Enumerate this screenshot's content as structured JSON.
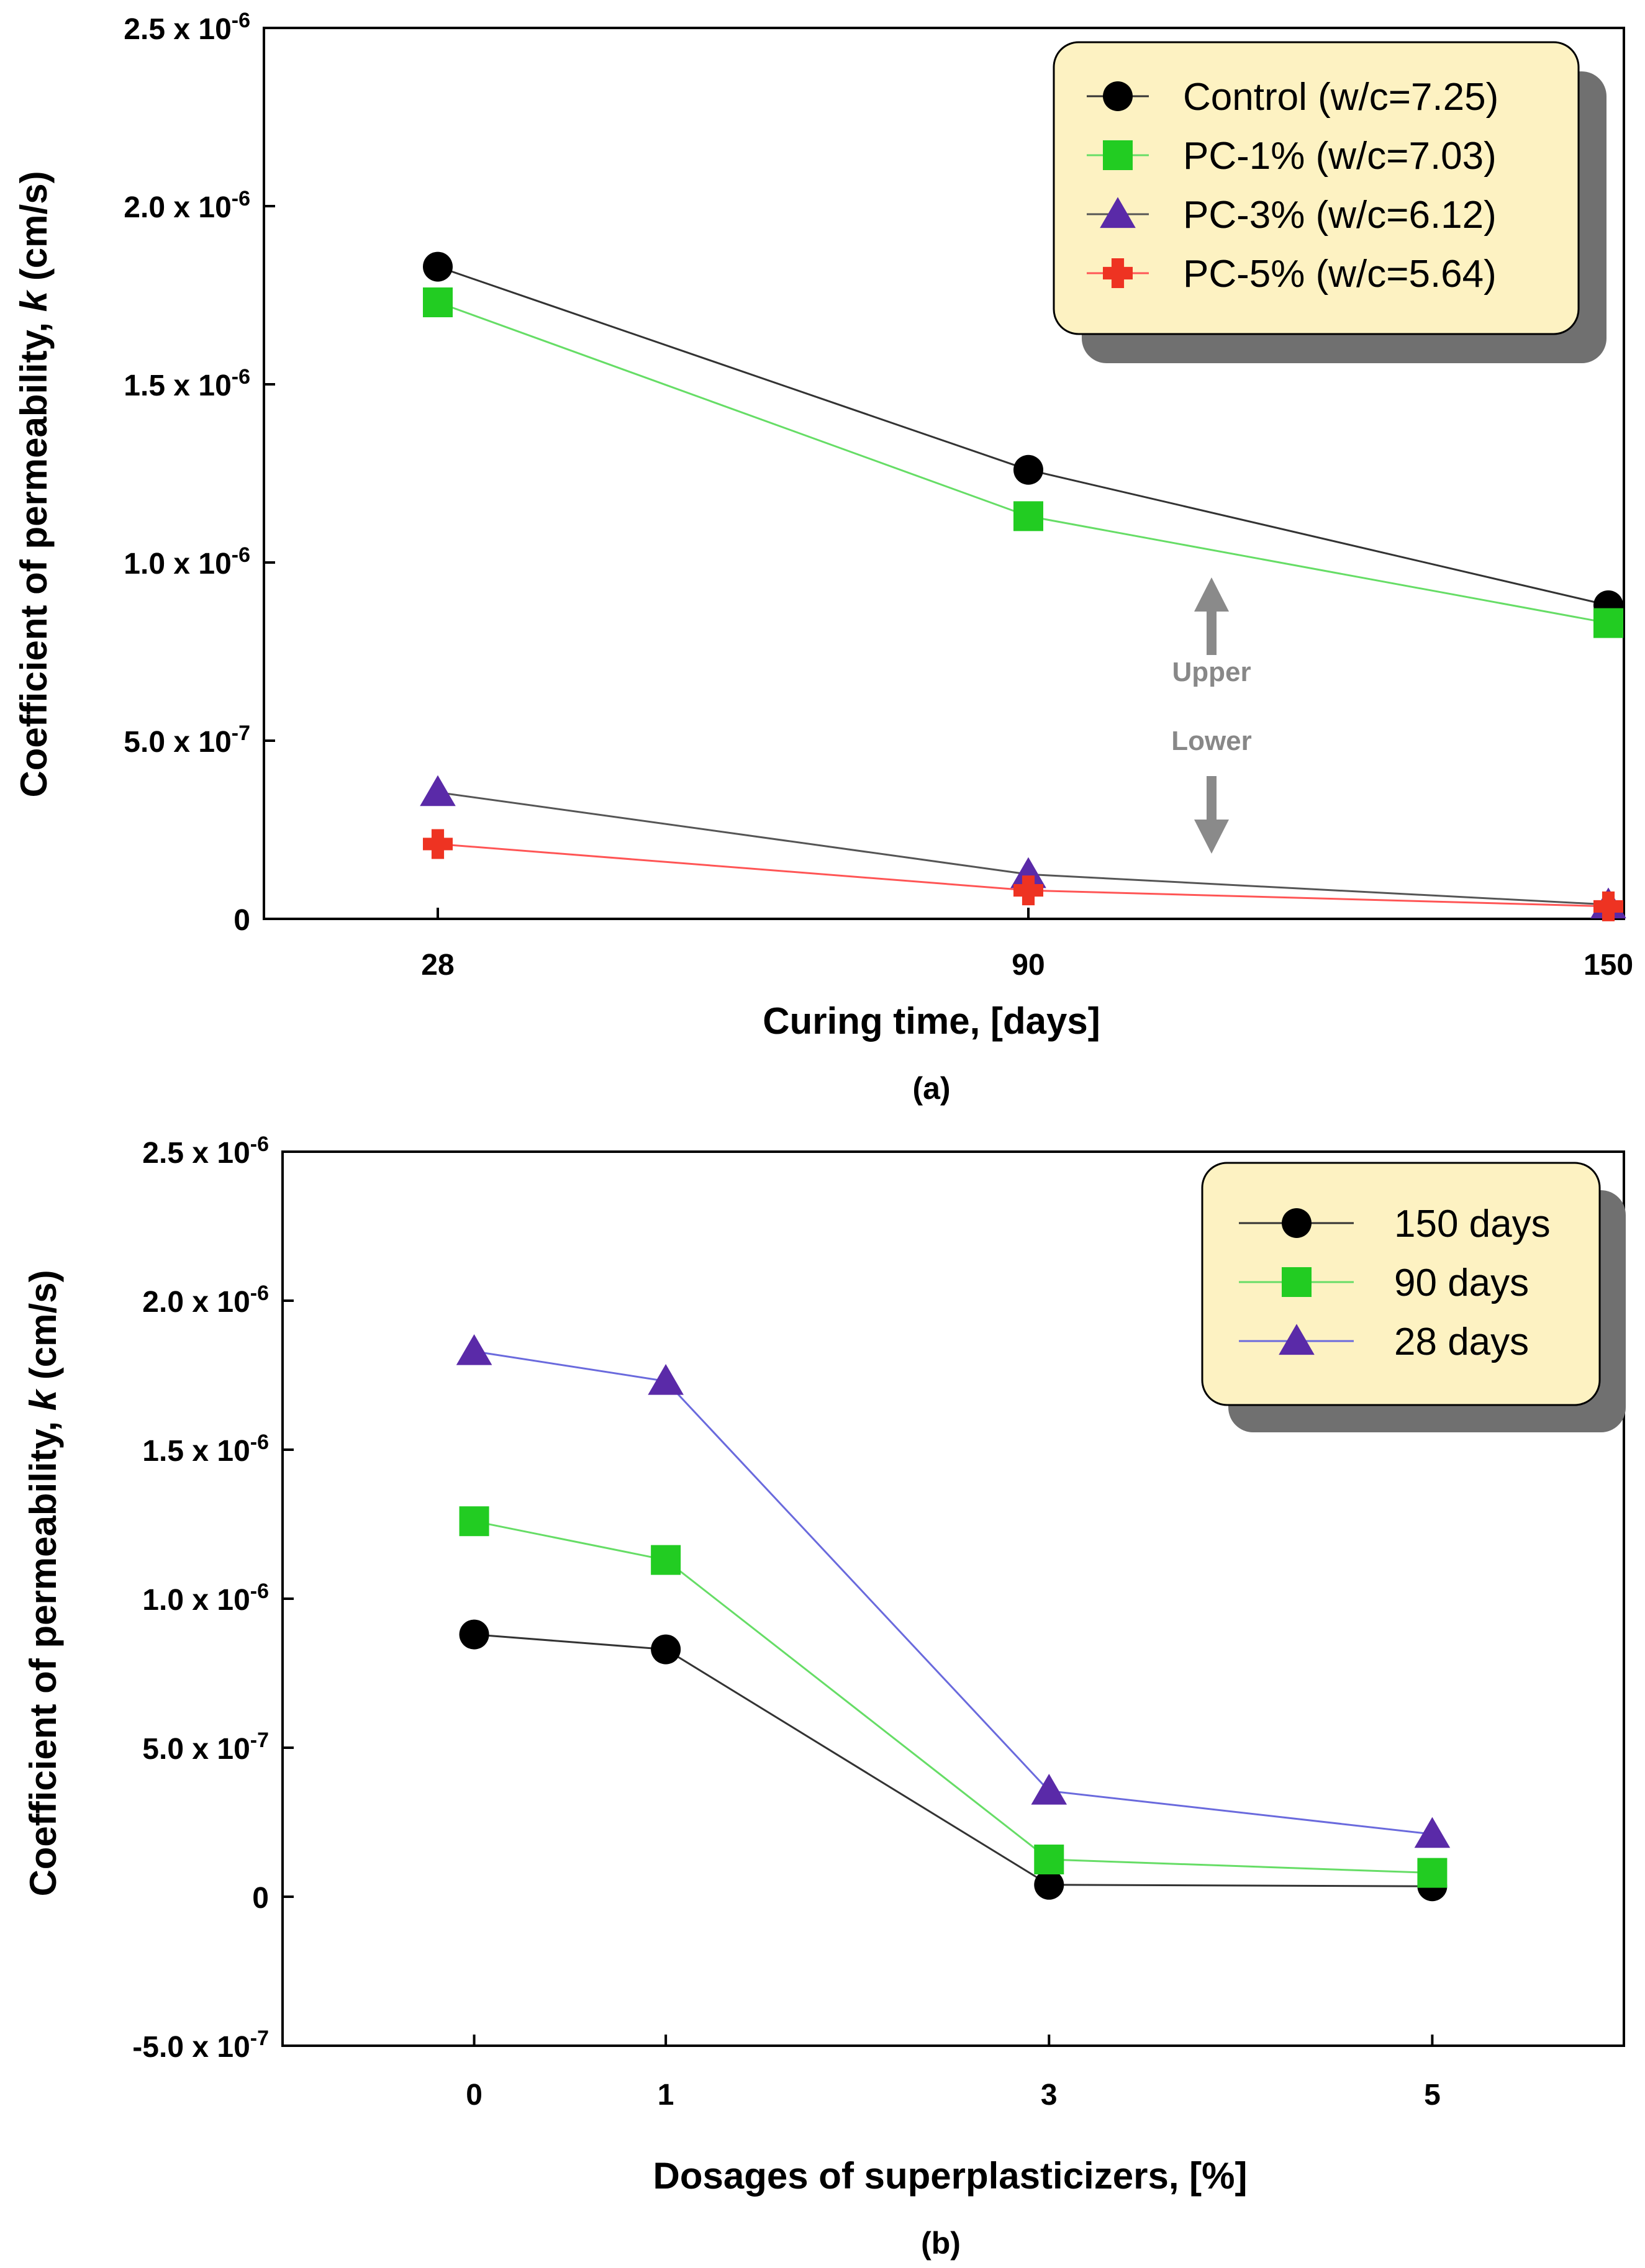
{
  "chart_data": [
    {
      "type": "line",
      "panel_label": "(a)",
      "xlabel": "Curing time, [days]",
      "ylabel_main": "Coefficient of permeability, ",
      "ylabel_italic": "k",
      "ylabel_unit": " (cm/s)",
      "categories": [
        "28",
        "90",
        "150"
      ],
      "ylim": [
        0,
        2.5e-06
      ],
      "yticks": [
        {
          "mant": "2.5 x 10",
          "exp": "-6",
          "value": 2.5e-06
        },
        {
          "mant": "2.0 x 10",
          "exp": "-6",
          "value": 2e-06
        },
        {
          "mant": "1.5 x 10",
          "exp": "-6",
          "value": 1.5e-06
        },
        {
          "mant": "1.0 x 10",
          "exp": "-6",
          "value": 1e-06
        },
        {
          "mant": "5.0 x 10",
          "exp": "-7",
          "value": 5e-07
        },
        {
          "mant": "0",
          "exp": "",
          "value": 0
        }
      ],
      "legend_position": "top-right",
      "series": [
        {
          "name": "Control (w/c=7.25)",
          "marker": "circle",
          "color": "#000000",
          "line": "#333333",
          "values": [
            1.83e-06,
            1.26e-06,
            8.8e-07
          ]
        },
        {
          "name": "PC-1% (w/c=7.03)",
          "marker": "square",
          "color": "#22cc22",
          "line": "#66dd66",
          "values": [
            1.73e-06,
            1.13e-06,
            8.3e-07
          ]
        },
        {
          "name": "PC-3% (w/c=6.12)",
          "marker": "triangle",
          "color": "#5a2aa8",
          "line": "#555555",
          "values": [
            3.55e-07,
            1.25e-07,
            4e-08
          ]
        },
        {
          "name": "PC-5% (w/c=5.64)",
          "marker": "plus",
          "color": "#ee3322",
          "line": "#ff5555",
          "values": [
            2.1e-07,
            8e-08,
            3.5e-08
          ]
        }
      ],
      "annotations": {
        "upper": "Upper",
        "lower": "Lower"
      }
    },
    {
      "type": "line",
      "panel_label": "(b)",
      "xlabel": "Dosages of superplasticizers, [%]",
      "ylabel_main": "Coefficient of permeability, ",
      "ylabel_italic": "k",
      "ylabel_unit": " (cm/s)",
      "x": [
        0,
        1,
        3,
        5
      ],
      "xticks": [
        "0",
        "1",
        "3",
        "5"
      ],
      "xlim": [
        -1,
        6
      ],
      "ylim": [
        -5e-07,
        2.5e-06
      ],
      "yticks": [
        {
          "mant": "2.5 x 10",
          "exp": "-6",
          "value": 2.5e-06
        },
        {
          "mant": "2.0 x 10",
          "exp": "-6",
          "value": 2e-06
        },
        {
          "mant": "1.5 x 10",
          "exp": "-6",
          "value": 1.5e-06
        },
        {
          "mant": "1.0 x 10",
          "exp": "-6",
          "value": 1e-06
        },
        {
          "mant": "5.0 x 10",
          "exp": "-7",
          "value": 5e-07
        },
        {
          "mant": "0",
          "exp": "",
          "value": 0
        },
        {
          "mant": "-5.0 x 10",
          "exp": "-7",
          "value": -5e-07
        }
      ],
      "legend_position": "top-right",
      "series": [
        {
          "name": "150 days",
          "marker": "circle",
          "color": "#000000",
          "line": "#333333",
          "values": [
            8.8e-07,
            8.3e-07,
            4e-08,
            3.5e-08
          ]
        },
        {
          "name": "90 days",
          "marker": "square",
          "color": "#22cc22",
          "line": "#66dd66",
          "values": [
            1.26e-06,
            1.13e-06,
            1.25e-07,
            8e-08
          ]
        },
        {
          "name": "28 days",
          "marker": "triangle",
          "color": "#5a2aa8",
          "line": "#6a6add",
          "values": [
            1.83e-06,
            1.73e-06,
            3.55e-07,
            2.1e-07
          ]
        }
      ]
    }
  ]
}
